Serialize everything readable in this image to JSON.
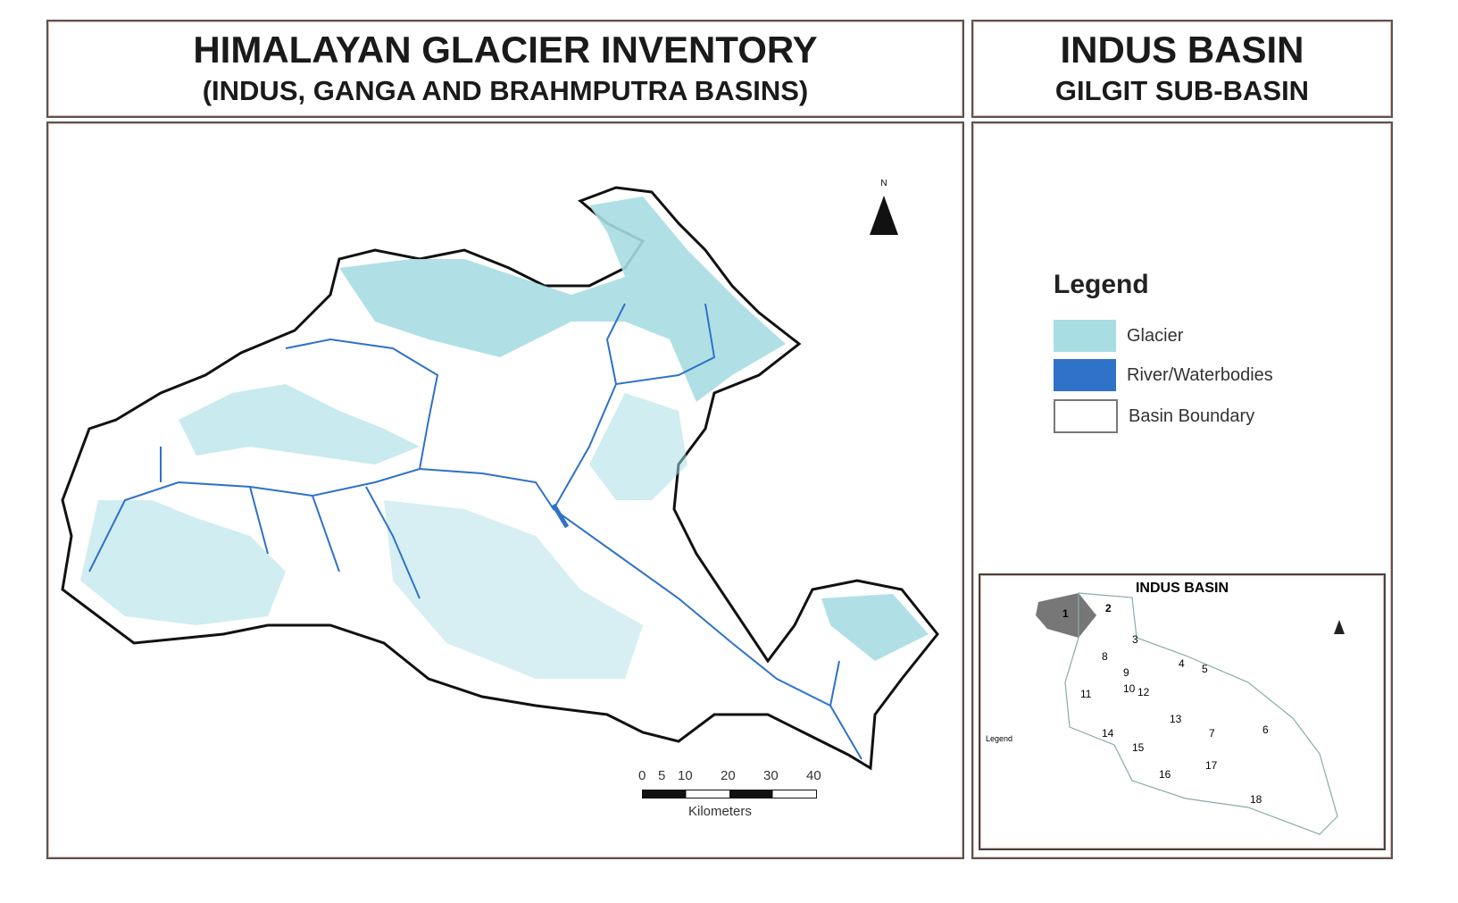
{
  "title_left": {
    "line1": "HIMALAYAN GLACIER INVENTORY",
    "line2": "(INDUS, GANGA AND BRAHMPUTRA BASINS)"
  },
  "title_right": {
    "line1": "INDUS BASIN",
    "line2": "GILGIT SUB-BASIN"
  },
  "north_label": "N",
  "legend": {
    "title": "Legend",
    "items": [
      {
        "label": "Glacier",
        "color": "#a8dde4"
      },
      {
        "label": "River/Waterbodies",
        "color": "#2f72c9"
      },
      {
        "label": "Basin Boundary",
        "color": "#ffffff"
      }
    ]
  },
  "scale": {
    "ticks": [
      "0",
      "5",
      "10",
      "20",
      "30",
      "40"
    ],
    "unit": "Kilometers"
  },
  "inset": {
    "title": "INDUS BASIN",
    "highlight_color": "#777777",
    "region_numbers": [
      "1",
      "2",
      "3",
      "4",
      "5",
      "6",
      "7",
      "8",
      "9",
      "10",
      "11",
      "12",
      "13",
      "14",
      "15",
      "16",
      "17",
      "18"
    ],
    "legend_title": "Legend"
  }
}
